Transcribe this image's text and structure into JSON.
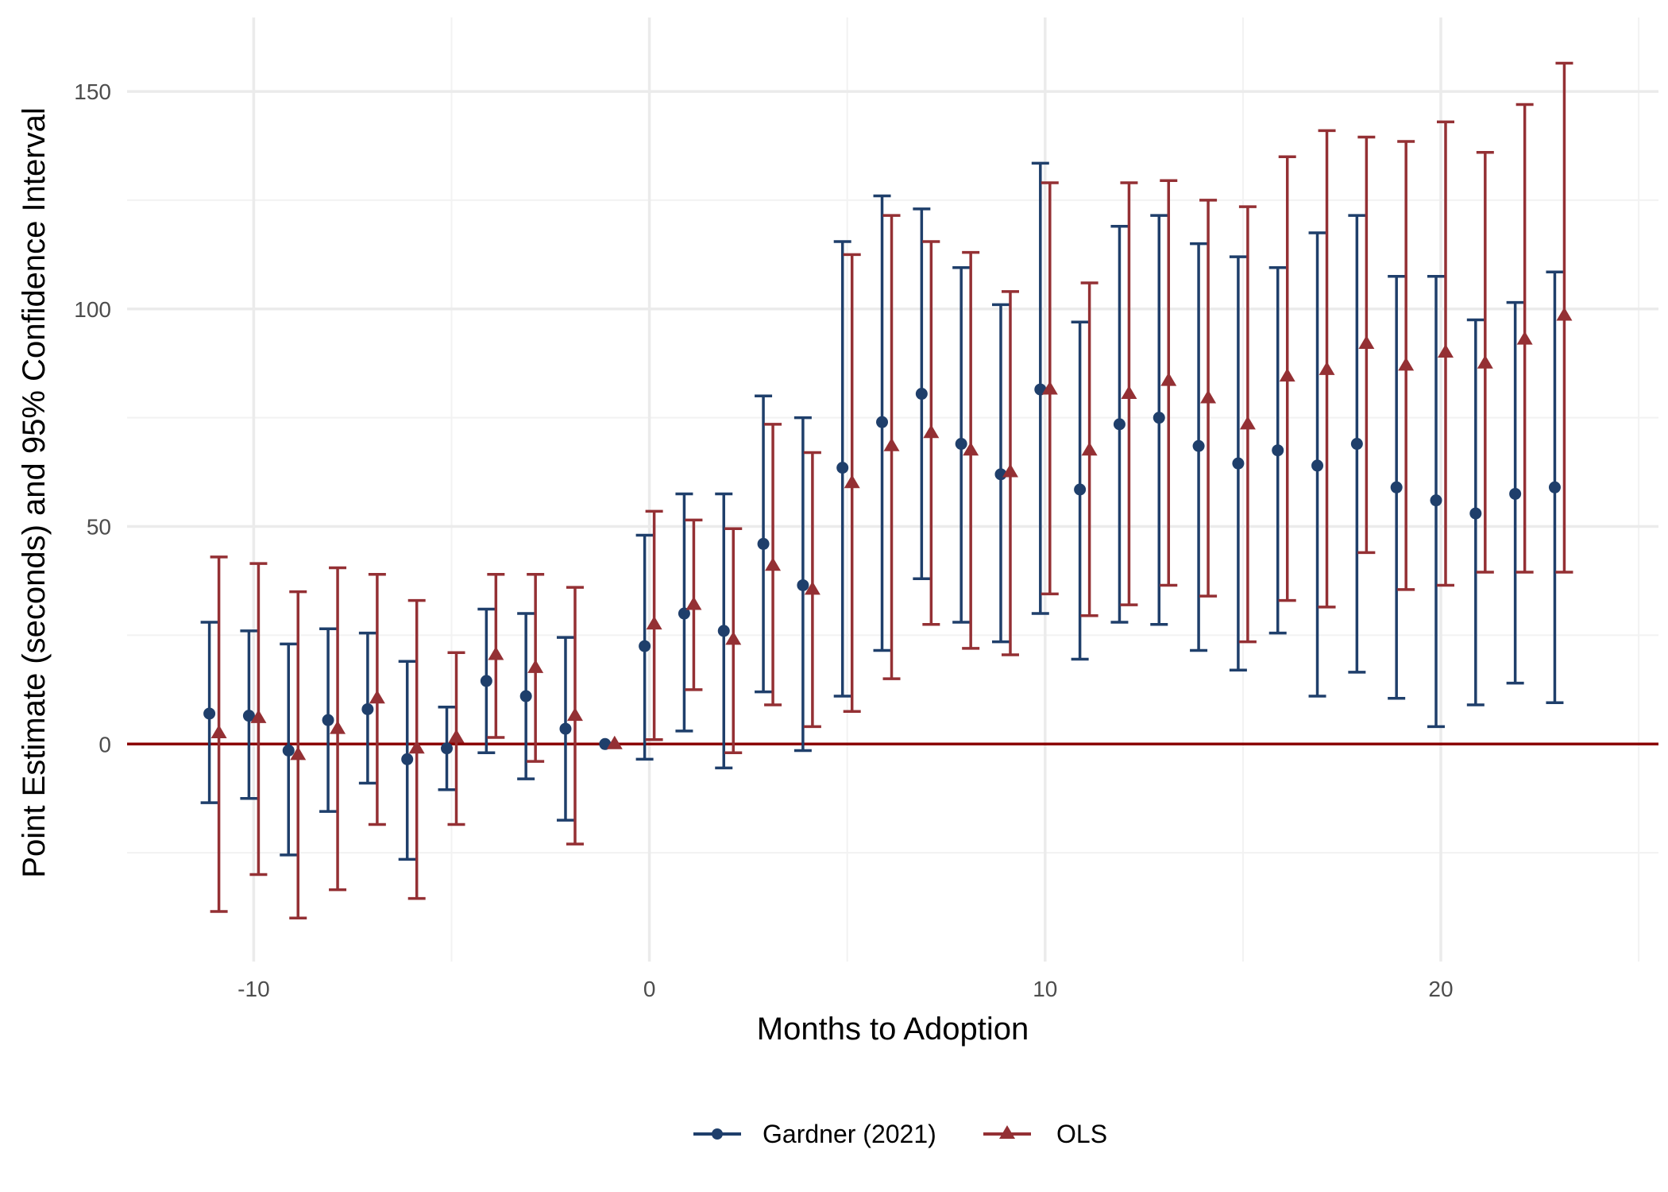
{
  "chart_data": {
    "type": "scatter",
    "xlabel": "Months to Adoption",
    "ylabel": "Point Estimate (seconds) and 95% Confidence Interval",
    "xlim": [
      -13.2,
      25.5
    ],
    "ylim": [
      -50,
      167
    ],
    "x_ticks": [
      -10,
      0,
      10,
      20
    ],
    "x_tick_labels": [
      "-10",
      "0",
      "10",
      "20"
    ],
    "y_ticks": [
      0,
      50,
      100,
      150
    ],
    "y_tick_labels": [
      "0",
      "50",
      "100",
      "150"
    ],
    "x_minor_ticks": [
      -5,
      5,
      15,
      25
    ],
    "y_minor_ticks": [
      -25,
      25,
      75,
      125
    ],
    "grid": true,
    "legend_position": "bottom",
    "reference_line": {
      "y": 0,
      "color": "#8B0000"
    },
    "series": [
      {
        "name": "Gardner (2021)",
        "color": "#1F3F6B",
        "marker": "circle",
        "x": [
          -11,
          -10,
          -9,
          -8,
          -7,
          -6,
          -5,
          -4,
          -3,
          -2,
          -1,
          0,
          1,
          2,
          3,
          4,
          5,
          6,
          7,
          8,
          9,
          10,
          11,
          12,
          13,
          14,
          15,
          16,
          17,
          18,
          19,
          20,
          21,
          22,
          23
        ],
        "y": [
          7,
          6.5,
          -1.5,
          5.5,
          8,
          -3.5,
          -1,
          14.5,
          11,
          3.5,
          0,
          22.5,
          30,
          26,
          46,
          36.5,
          63.5,
          74,
          80.5,
          69,
          62,
          81.5,
          58.5,
          73.5,
          75,
          68.5,
          64.5,
          67.5,
          64,
          69,
          59,
          56,
          53,
          57.5,
          59
        ],
        "lower": [
          -13.5,
          -12.5,
          -25.5,
          -15.5,
          -9,
          -26.5,
          -10.5,
          -2,
          -8,
          -17.5,
          0,
          -3.5,
          3,
          -5.5,
          12,
          -1.5,
          11,
          21.5,
          38,
          28,
          23.5,
          30,
          19.5,
          28,
          27.5,
          21.5,
          17,
          25.5,
          11,
          16.5,
          10.5,
          4,
          9,
          14,
          9.5
        ],
        "upper": [
          28,
          26,
          23,
          26.5,
          25.5,
          19,
          8.5,
          31,
          30,
          24.5,
          0,
          48,
          57.5,
          57.5,
          80,
          75,
          115.5,
          126,
          123,
          109.5,
          101,
          133.5,
          97,
          119,
          121.5,
          115,
          112,
          109.5,
          117.5,
          121.5,
          107.5,
          107.5,
          97.5,
          101.5,
          108.5
        ]
      },
      {
        "name": "OLS",
        "color": "#943034",
        "marker": "triangle",
        "x": [
          -11,
          -10,
          -9,
          -8,
          -7,
          -6,
          -5,
          -4,
          -3,
          -2,
          -1,
          0,
          1,
          2,
          3,
          4,
          5,
          6,
          7,
          8,
          9,
          10,
          11,
          12,
          13,
          14,
          15,
          16,
          17,
          18,
          19,
          20,
          21,
          22,
          23
        ],
        "y": [
          2.5,
          6,
          -2.5,
          3.5,
          10.5,
          -1,
          1.5,
          20.5,
          17.5,
          6.5,
          0,
          27.5,
          32,
          24,
          41,
          35.5,
          60,
          68.5,
          71.5,
          67.5,
          62.5,
          81.5,
          67.5,
          80.5,
          83.5,
          79.5,
          73.5,
          84.5,
          86,
          92,
          87,
          90,
          87.5,
          93,
          98.5
        ],
        "lower": [
          -38.5,
          -30,
          -40,
          -33.5,
          -18.5,
          -35.5,
          -18.5,
          1.5,
          -4,
          -23,
          0,
          1,
          12.5,
          -2,
          9,
          4,
          7.5,
          15,
          27.5,
          22,
          20.5,
          34.5,
          29.5,
          32,
          36.5,
          34,
          23.5,
          33,
          31.5,
          44,
          35.5,
          36.5,
          39.5,
          39.5,
          39.5
        ],
        "upper": [
          43,
          41.5,
          35,
          40.5,
          39,
          33,
          21,
          39,
          39,
          36,
          0,
          53.5,
          51.5,
          49.5,
          73.5,
          67,
          112.5,
          121.5,
          115.5,
          113,
          104,
          129,
          106,
          129,
          129.5,
          125,
          123.5,
          135,
          141,
          139.5,
          138.5,
          143,
          136,
          147,
          156.5
        ]
      }
    ]
  }
}
